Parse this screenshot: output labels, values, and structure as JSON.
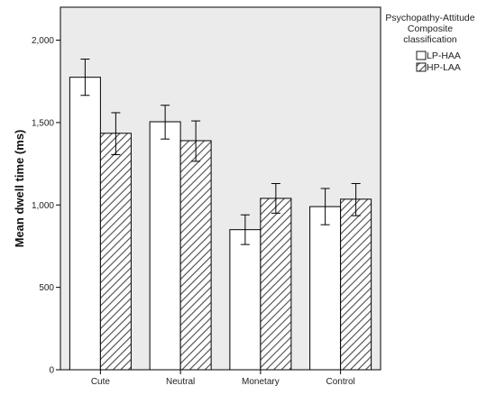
{
  "chart_data": {
    "type": "bar",
    "title": "",
    "xlabel": "",
    "ylabel": "Mean dwell time (ms)",
    "ylim": [
      0,
      2200
    ],
    "yticks": [
      0,
      500,
      1000,
      1500,
      2000
    ],
    "ytick_labels": [
      "0",
      "500",
      "1,000",
      "1,500",
      "2,000"
    ],
    "categories": [
      "Cute",
      "Neutral",
      "Monetary",
      "Control"
    ],
    "series": [
      {
        "name": "LP-HAA",
        "pattern": "solid-white",
        "values": [
          1775,
          1505,
          850,
          990
        ],
        "error_low": [
          1665,
          1400,
          760,
          880
        ],
        "error_high": [
          1885,
          1605,
          940,
          1100
        ]
      },
      {
        "name": "HP-LAA",
        "pattern": "diagonal-hatch",
        "values": [
          1435,
          1390,
          1040,
          1035
        ],
        "error_low": [
          1305,
          1265,
          950,
          935
        ],
        "error_high": [
          1560,
          1510,
          1130,
          1130
        ]
      }
    ],
    "legend": {
      "title_lines": [
        "Psychopathy-Attitude",
        "Composite",
        "classification"
      ],
      "placement": "right"
    },
    "grid": false,
    "colors": {
      "plot_background": "#ebebeb",
      "bar_fill": "#ffffff",
      "bar_stroke": "#000000",
      "hatch": "#4a4a4a"
    }
  }
}
